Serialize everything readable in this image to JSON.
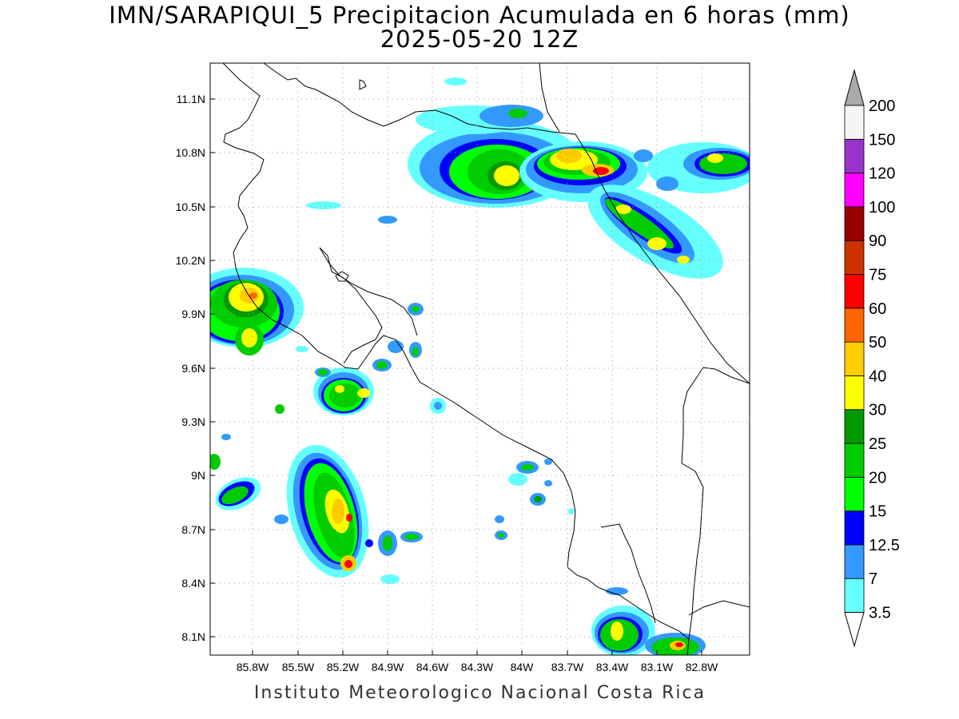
{
  "title": {
    "line1": "IMN/SARAPIQUI_5 Precipitacion Acumulada en 6 horas (mm)",
    "line2": "2025-05-20 12Z"
  },
  "footer": "Instituto Meteorologico Nacional Costa Rica",
  "map": {
    "lon_range": [
      -86.0,
      -83.0
    ],
    "lat_range": [
      8.0,
      11.2
    ],
    "lon_ticks": [
      "85.8W",
      "85.5W",
      "85.2W",
      "84.9W",
      "84.6W",
      "84.3W",
      "84W",
      "83.7W",
      "83.4W",
      "83.1W",
      "82.8W"
    ],
    "lat_ticks": [
      "11.1N",
      "10.8N",
      "10.5N",
      "10.2N",
      "9.9N",
      "9.6N",
      "9.3N",
      "9N",
      "8.7N",
      "8.4N",
      "8.1N"
    ],
    "grid": true
  },
  "colorbar": {
    "unit": "mm",
    "levels": [
      "3.5",
      "7",
      "12.5",
      "15",
      "20",
      "25",
      "30",
      "40",
      "50",
      "60",
      "75",
      "90",
      "100",
      "120",
      "150",
      "200"
    ],
    "colors": [
      "#66ffff",
      "#3399ff",
      "#0000ff",
      "#00ff00",
      "#00cc00",
      "#009900",
      "#ffff00",
      "#ffcc00",
      "#ff6600",
      "#ff0000",
      "#cc3300",
      "#990000",
      "#ff00ff",
      "#9933cc",
      "#f5f5f5",
      "#aaaaaa"
    ]
  }
}
